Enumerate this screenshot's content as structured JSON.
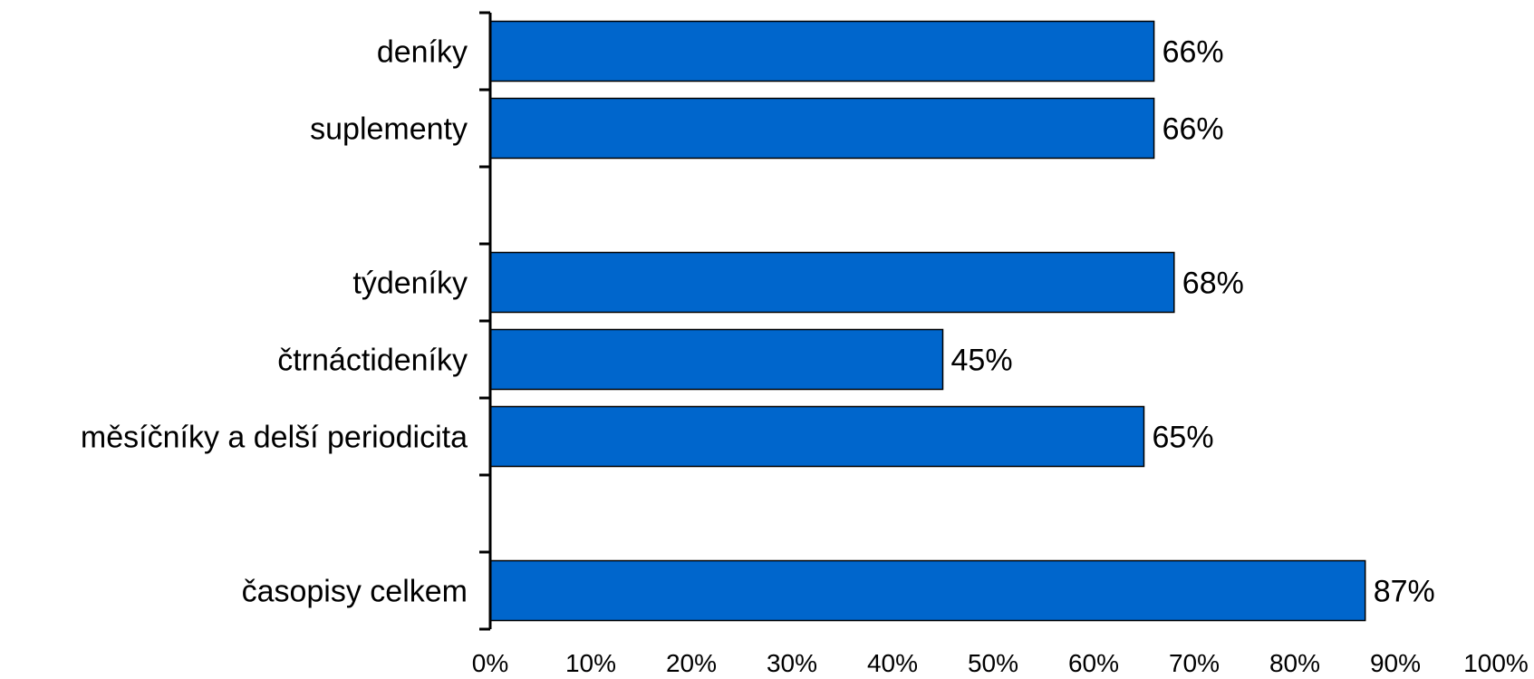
{
  "chart_data": {
    "type": "bar",
    "orientation": "horizontal",
    "categories": [
      "deníky",
      "suplementy",
      "",
      "týdeníky",
      "čtrnáctideníky",
      "měsíčníky a delší periodicita",
      "",
      "časopisy celkem"
    ],
    "values": [
      66,
      66,
      null,
      68,
      45,
      65,
      null,
      87
    ],
    "data_labels": [
      "66%",
      "66%",
      "",
      "68%",
      "45%",
      "65%",
      "",
      "87%"
    ],
    "x_ticks": [
      "0%",
      "10%",
      "20%",
      "30%",
      "40%",
      "50%",
      "60%",
      "70%",
      "80%",
      "90%",
      "100%"
    ],
    "xlim": [
      0,
      100
    ],
    "title": "",
    "xlabel": "",
    "ylabel": "",
    "grid": false,
    "bar_color": "#0066CC",
    "bar_border_color": "#000000",
    "axis_color": "#000000"
  }
}
